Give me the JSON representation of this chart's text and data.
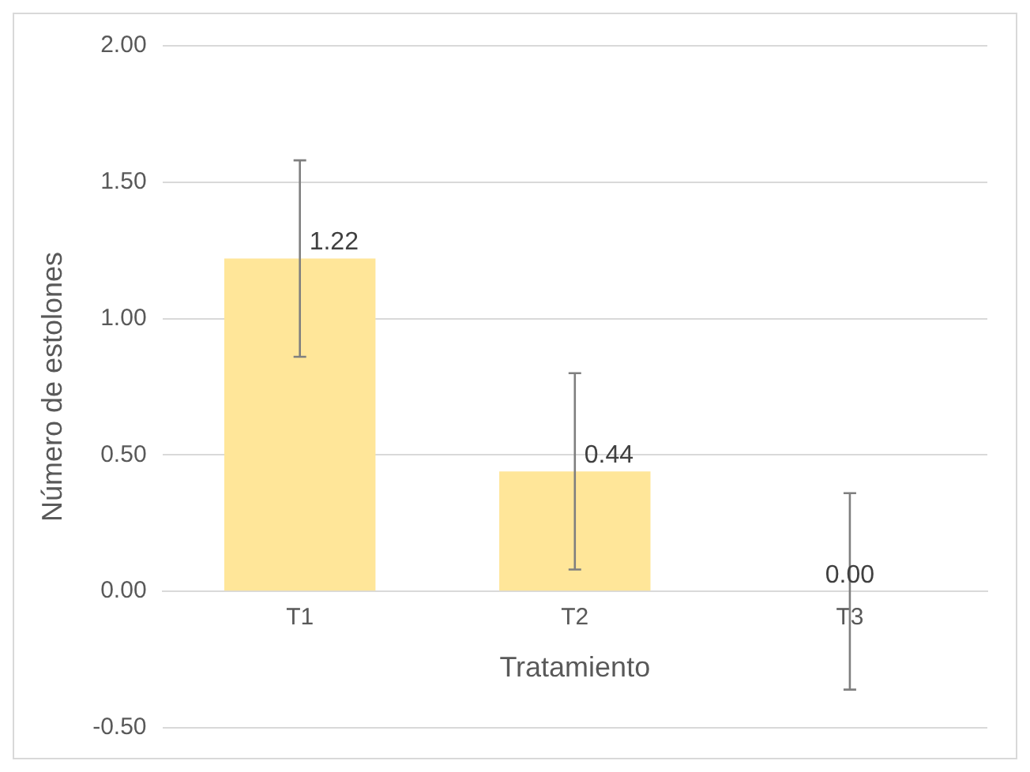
{
  "chart_data": {
    "type": "bar",
    "xlabel": "Tratamiento",
    "ylabel": "Número de estolones",
    "categories": [
      "T1",
      "T2",
      "T3"
    ],
    "values": [
      1.22,
      0.44,
      0
    ],
    "value_labels": [
      "1.22",
      "0.44",
      "0.00"
    ],
    "errors": [
      0.36,
      0.36,
      0.36
    ],
    "color": "#ffe699",
    "ylim": [
      -0.5,
      2
    ],
    "yticks": [
      {
        "value": -0.5,
        "label": "-0.50"
      },
      {
        "value": 0,
        "label": "0.00"
      },
      {
        "value": 0.5,
        "label": "0.50"
      },
      {
        "value": 1,
        "label": "1.00"
      },
      {
        "value": 1.5,
        "label": "1.50"
      },
      {
        "value": 2,
        "label": "2.00"
      }
    ],
    "grid": "y",
    "legend": false
  }
}
